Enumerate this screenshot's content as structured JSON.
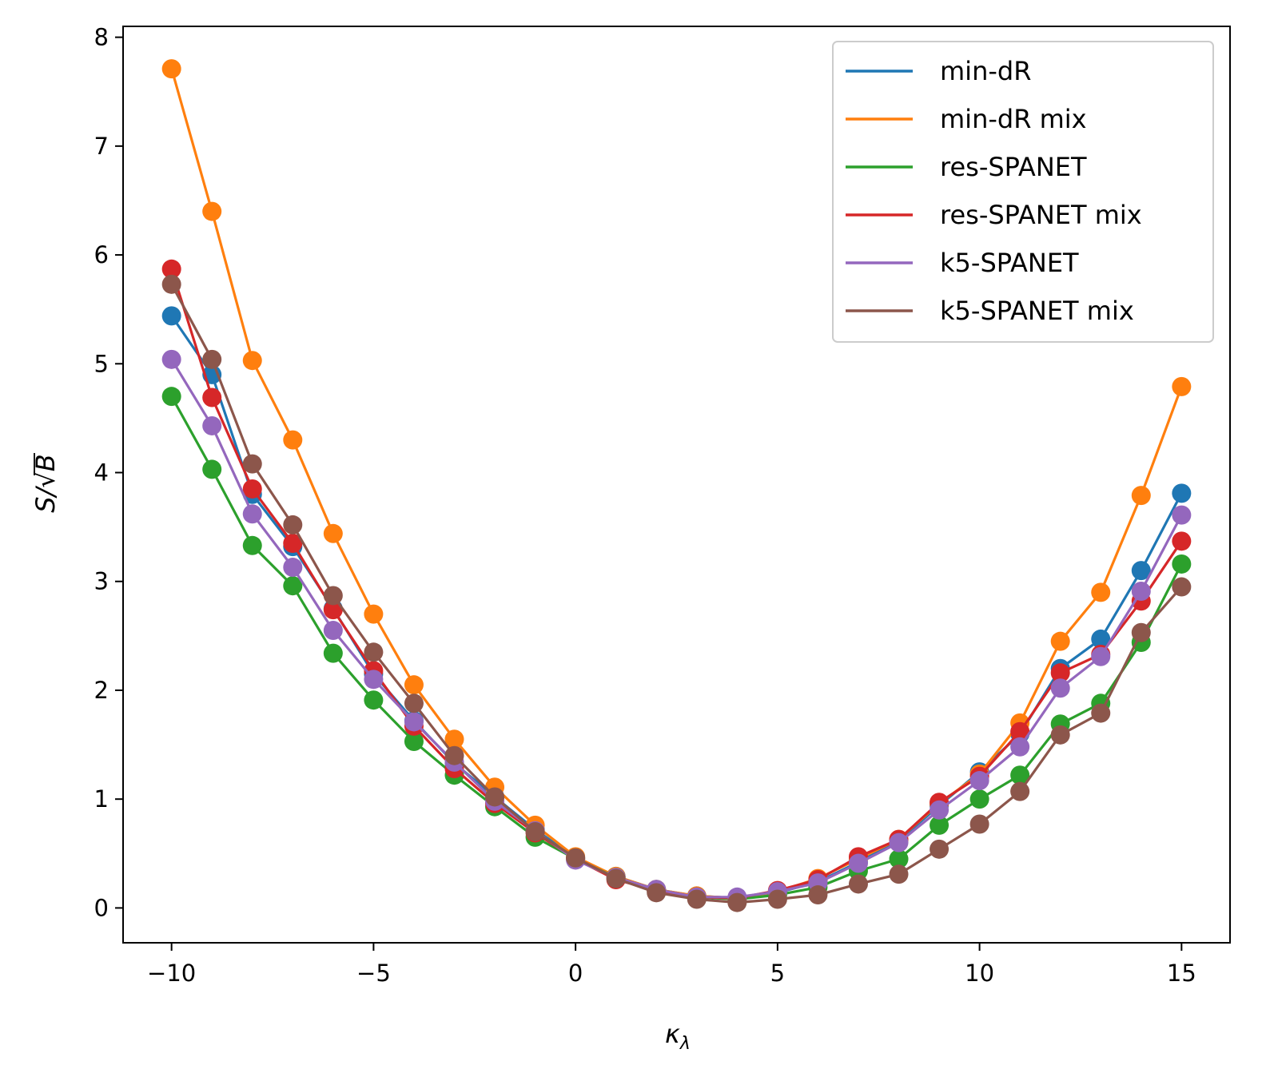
{
  "chart_data": {
    "type": "line",
    "xlabel": "κ",
    "xlabel_sub": "λ",
    "ylabel_prefix": "S/",
    "ylabel_radical": "√",
    "ylabel_radicand": "B",
    "xlim": [
      -11.2,
      16.2
    ],
    "ylim": [
      -0.32,
      8.1
    ],
    "xticks": [
      -10,
      -5,
      0,
      5,
      10,
      15
    ],
    "xtick_labels": [
      "−10",
      "−5",
      "0",
      "5",
      "10",
      "15"
    ],
    "yticks": [
      0,
      1,
      2,
      3,
      4,
      5,
      6,
      7,
      8
    ],
    "ytick_labels": [
      "0",
      "1",
      "2",
      "3",
      "4",
      "5",
      "6",
      "7",
      "8"
    ],
    "grid": false,
    "legend_position": "top-right",
    "x": [
      -10,
      -9,
      -8,
      -7,
      -6,
      -5,
      -4,
      -3,
      -2,
      -1,
      0,
      1,
      2,
      3,
      4,
      5,
      6,
      7,
      8,
      9,
      10,
      11,
      12,
      13,
      14,
      15
    ],
    "series": [
      {
        "name": "min-dR",
        "color": "#1f77b4",
        "values": [
          5.44,
          4.9,
          3.8,
          3.32,
          2.75,
          2.15,
          1.72,
          1.33,
          1.02,
          0.72,
          0.46,
          0.29,
          0.17,
          0.11,
          0.09,
          0.14,
          0.24,
          0.42,
          0.62,
          0.94,
          1.25,
          1.6,
          2.2,
          2.47,
          3.1,
          3.81
        ]
      },
      {
        "name": "min-dR mix",
        "color": "#ff7f0e",
        "values": [
          7.71,
          6.4,
          5.03,
          4.3,
          3.44,
          2.7,
          2.05,
          1.55,
          1.11,
          0.76,
          0.47,
          0.29,
          0.17,
          0.11,
          0.09,
          0.15,
          0.27,
          0.45,
          0.63,
          0.96,
          1.23,
          1.7,
          2.45,
          2.9,
          3.79,
          4.79
        ]
      },
      {
        "name": "res-SPANET",
        "color": "#2ca02c",
        "values": [
          4.7,
          4.03,
          3.33,
          2.96,
          2.34,
          1.91,
          1.53,
          1.22,
          0.93,
          0.65,
          0.45,
          0.28,
          0.16,
          0.1,
          0.08,
          0.12,
          0.19,
          0.34,
          0.45,
          0.76,
          1.0,
          1.22,
          1.69,
          1.88,
          2.44,
          3.16
        ]
      },
      {
        "name": "res-SPANET mix",
        "color": "#d62728",
        "values": [
          5.87,
          4.69,
          3.85,
          3.35,
          2.74,
          2.18,
          1.67,
          1.28,
          0.96,
          0.69,
          0.45,
          0.26,
          0.16,
          0.1,
          0.09,
          0.16,
          0.26,
          0.47,
          0.63,
          0.97,
          1.21,
          1.62,
          2.16,
          2.33,
          2.82,
          3.37
        ]
      },
      {
        "name": "k5-SPANET",
        "color": "#9467bd",
        "values": [
          5.04,
          4.43,
          3.62,
          3.13,
          2.55,
          2.1,
          1.71,
          1.34,
          0.98,
          0.71,
          0.44,
          0.28,
          0.17,
          0.1,
          0.1,
          0.15,
          0.23,
          0.41,
          0.6,
          0.9,
          1.17,
          1.48,
          2.02,
          2.31,
          2.91,
          3.61
        ]
      },
      {
        "name": "k5-SPANET mix",
        "color": "#8c564b",
        "values": [
          5.73,
          5.04,
          4.08,
          3.52,
          2.87,
          2.35,
          1.88,
          1.4,
          1.02,
          0.7,
          0.46,
          0.27,
          0.14,
          0.08,
          0.05,
          0.08,
          0.12,
          0.22,
          0.31,
          0.54,
          0.77,
          1.07,
          1.59,
          1.79,
          2.53,
          2.95
        ]
      }
    ]
  }
}
